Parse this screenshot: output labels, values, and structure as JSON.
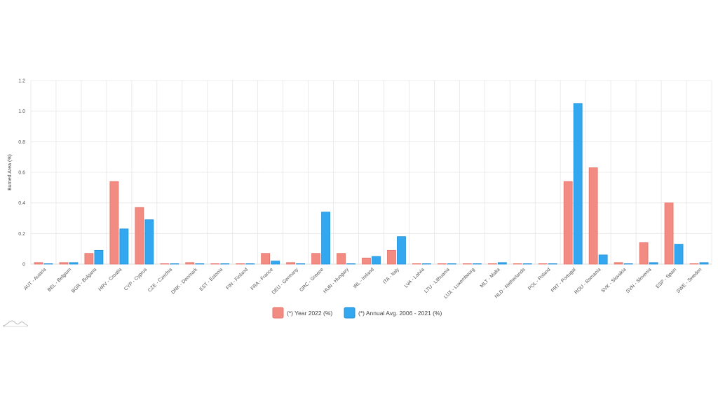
{
  "chart_data": {
    "type": "bar",
    "xlabel": "",
    "ylabel": "Burned Area (%)",
    "ylim": [
      0,
      1.2
    ],
    "yticks": [
      "0",
      "0.2",
      "0.4",
      "0.6",
      "0.8",
      "1.0",
      "1.2"
    ],
    "grid": true,
    "legend_position": "bottom",
    "categories": [
      "AUT - Austria",
      "BEL - Belgium",
      "BGR - Bulgaria",
      "HRV - Croatia",
      "CYP - Cyprus",
      "CZE - Czechia",
      "DNK - Denmark",
      "EST - Estonia",
      "FIN - Finland",
      "FRA - France",
      "DEU - Germany",
      "GRC - Greece",
      "HUN - Hungary",
      "IRL - Ireland",
      "ITA - Italy",
      "LVA - Latvia",
      "LTU - Lithuania",
      "LUX - Luxembourg",
      "MLT - Malta",
      "NLD - Netherlands",
      "POL - Poland",
      "PRT - Portugal",
      "ROU - Romania",
      "SVK - Slovakia",
      "SVN - Slovenia",
      "ESP - Spain",
      "SWE - Sweden"
    ],
    "series": [
      {
        "name": "(*) Year 2022 (%)",
        "color": "#f28b82",
        "stroke": "#e57369",
        "values": [
          0.01,
          0.01,
          0.07,
          0.54,
          0.37,
          0.0,
          0.01,
          0.0,
          0.0,
          0.07,
          0.01,
          0.07,
          0.07,
          0.04,
          0.09,
          0.0,
          0.0,
          0.0,
          0.0,
          0.0,
          0.0,
          0.54,
          0.63,
          0.01,
          0.14,
          0.4,
          0.0
        ]
      },
      {
        "name": "(*) Annual Avg. 2006 - 2021 (%)",
        "color": "#33a8f0",
        "stroke": "#1f8fd6",
        "values": [
          0.0,
          0.01,
          0.09,
          0.23,
          0.29,
          0.0,
          0.0,
          0.0,
          0.0,
          0.02,
          0.0,
          0.34,
          0.0,
          0.05,
          0.18,
          0.0,
          0.0,
          0.0,
          0.01,
          0.0,
          0.0,
          1.05,
          0.06,
          0.0,
          0.01,
          0.13,
          0.01
        ]
      }
    ]
  },
  "logo": {
    "icon": "wave-logo-icon"
  }
}
